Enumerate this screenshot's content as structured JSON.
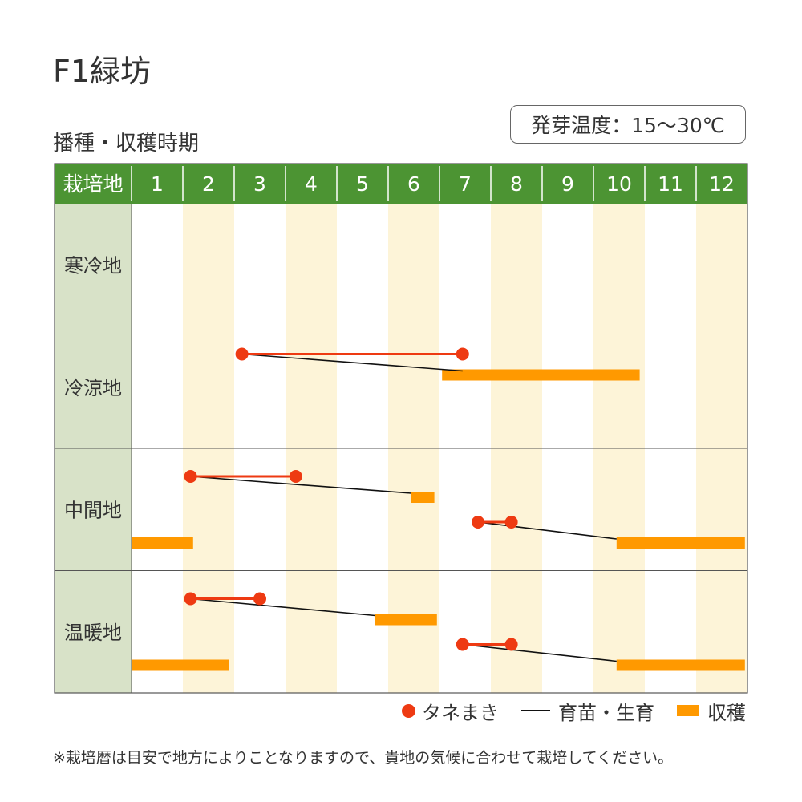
{
  "title": "F1緑坊",
  "subtitle": "播種・収穫時期",
  "temperature_note": "発芽温度：15〜30℃",
  "legend": {
    "sowing": "タネまき",
    "growing": "育苗・生育",
    "harvest": "収穫"
  },
  "footnote": "※栽培暦は目安で地方によりことなりますので、貴地の気候に合わせて栽培してください。",
  "colors": {
    "header_bg": "#4c9433",
    "row_label_bg": "#d8e2c8",
    "alt_column": "#fdf4d8",
    "sowing": "#ee3a12",
    "growing": "#111111",
    "harvest": "#ff9900"
  },
  "chart_data": {
    "type": "table",
    "header_label": "栽培地",
    "months": [
      "1",
      "2",
      "3",
      "4",
      "5",
      "6",
      "7",
      "8",
      "9",
      "10",
      "11",
      "12"
    ],
    "x_unit": "month",
    "regions": [
      {
        "name": "寒冷地",
        "plans": []
      },
      {
        "name": "冷涼地",
        "plans": [
          {
            "sow": [
              3.15,
              7.45
            ],
            "grow": [
              3.15,
              7.45
            ],
            "harvest": [
              7.05,
              10.9
            ]
          }
        ]
      },
      {
        "name": "中間地",
        "plans": [
          {
            "sow": [
              2.15,
              4.2
            ],
            "grow": [
              2.15,
              6.45
            ],
            "harvest": [
              6.45,
              6.9
            ]
          },
          {
            "sow": [
              7.75,
              8.4
            ],
            "grow": [
              7.75,
              10.45
            ],
            "harvest": [
              10.45,
              12.95
            ]
          },
          {
            "harvest": [
              1.0,
              2.2
            ]
          }
        ]
      },
      {
        "name": "温暖地",
        "plans": [
          {
            "sow": [
              2.15,
              3.5
            ],
            "grow": [
              2.15,
              5.75
            ],
            "harvest": [
              5.75,
              6.95
            ]
          },
          {
            "sow": [
              7.45,
              8.4
            ],
            "grow": [
              7.45,
              10.45
            ],
            "harvest": [
              10.45,
              12.95
            ]
          },
          {
            "harvest": [
              1.0,
              2.9
            ]
          }
        ]
      }
    ]
  }
}
